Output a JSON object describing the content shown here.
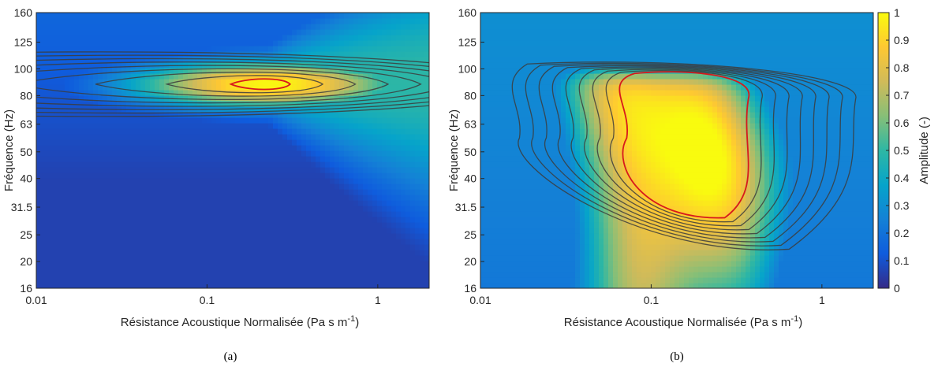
{
  "colorscale": {
    "name": "parula",
    "stops": [
      "#352a87",
      "#0f5cdd",
      "#1481d6",
      "#06a4ca",
      "#2eb7a4",
      "#87bf77",
      "#d1bb59",
      "#fec832",
      "#f9fb0e"
    ]
  },
  "chart_data": [
    {
      "type": "heatmap",
      "panel": "a",
      "caption": "(a)",
      "xlabel": "Résistance Acoustique Normalisée (Pa s m",
      "xlabel_sup": "-1",
      "xlabel_close": ")",
      "ylabel": "Fréquence (Hz)",
      "xscale": "log",
      "xlim": [
        0.01,
        2
      ],
      "yscale": "log",
      "ylim": [
        16,
        160
      ],
      "xticks": [
        {
          "v": 0.01,
          "label": "0.01"
        },
        {
          "v": 0.1,
          "label": "0.1"
        },
        {
          "v": 1,
          "label": "1"
        }
      ],
      "yticks": [
        {
          "v": 16,
          "label": "16"
        },
        {
          "v": 20,
          "label": "20"
        },
        {
          "v": 25,
          "label": "25"
        },
        {
          "v": 31.5,
          "label": "31.5"
        },
        {
          "v": 40,
          "label": "40"
        },
        {
          "v": 50,
          "label": "50"
        },
        {
          "v": 63,
          "label": "63"
        },
        {
          "v": 80,
          "label": "80"
        },
        {
          "v": 100,
          "label": "100"
        },
        {
          "v": 125,
          "label": "125"
        },
        {
          "v": 160,
          "label": "160"
        }
      ],
      "peak": {
        "x": 0.23,
        "y": 88,
        "value": 1.0
      },
      "contour_levels": [
        0.1,
        0.2,
        0.3,
        0.4,
        0.5,
        0.6,
        0.7,
        0.8,
        0.9
      ],
      "highlight_level": 0.9
    },
    {
      "type": "heatmap",
      "panel": "b",
      "caption": "(b)",
      "xlabel": "Résistance Acoustique Normalisée (Pa s m",
      "xlabel_sup": "-1",
      "xlabel_close": ")",
      "ylabel": "Fréquence (Hz)",
      "xscale": "log",
      "xlim": [
        0.01,
        2
      ],
      "yscale": "log",
      "ylim": [
        16,
        160
      ],
      "xticks": [
        {
          "v": 0.01,
          "label": "0.01"
        },
        {
          "v": 0.1,
          "label": "0.1"
        },
        {
          "v": 1,
          "label": "1"
        }
      ],
      "yticks": [
        {
          "v": 16,
          "label": "16"
        },
        {
          "v": 20,
          "label": "20"
        },
        {
          "v": 25,
          "label": "25"
        },
        {
          "v": 31.5,
          "label": "31.5"
        },
        {
          "v": 40,
          "label": "40"
        },
        {
          "v": 50,
          "label": "50"
        },
        {
          "v": 63,
          "label": "63"
        },
        {
          "v": 80,
          "label": "80"
        },
        {
          "v": 100,
          "label": "100"
        },
        {
          "v": 125,
          "label": "125"
        },
        {
          "v": 160,
          "label": "160"
        }
      ],
      "peak_region": {
        "x_range": [
          0.08,
          0.3
        ],
        "y_range": [
          30,
          95
        ],
        "value": 1.0
      },
      "contour_levels": [
        0.1,
        0.2,
        0.3,
        0.4,
        0.5,
        0.6,
        0.7,
        0.8,
        0.9
      ],
      "highlight_level": 0.9
    }
  ],
  "colorbar": {
    "label": "Amplitude (-)",
    "lim": [
      0,
      1
    ],
    "ticks": [
      {
        "v": 0,
        "label": "0"
      },
      {
        "v": 0.1,
        "label": "0.1"
      },
      {
        "v": 0.2,
        "label": "0.2"
      },
      {
        "v": 0.3,
        "label": "0.3"
      },
      {
        "v": 0.4,
        "label": "0.4"
      },
      {
        "v": 0.5,
        "label": "0.5"
      },
      {
        "v": 0.6,
        "label": "0.6"
      },
      {
        "v": 0.7,
        "label": "0.7"
      },
      {
        "v": 0.8,
        "label": "0.8"
      },
      {
        "v": 0.9,
        "label": "0.9"
      },
      {
        "v": 1,
        "label": "1"
      }
    ]
  }
}
